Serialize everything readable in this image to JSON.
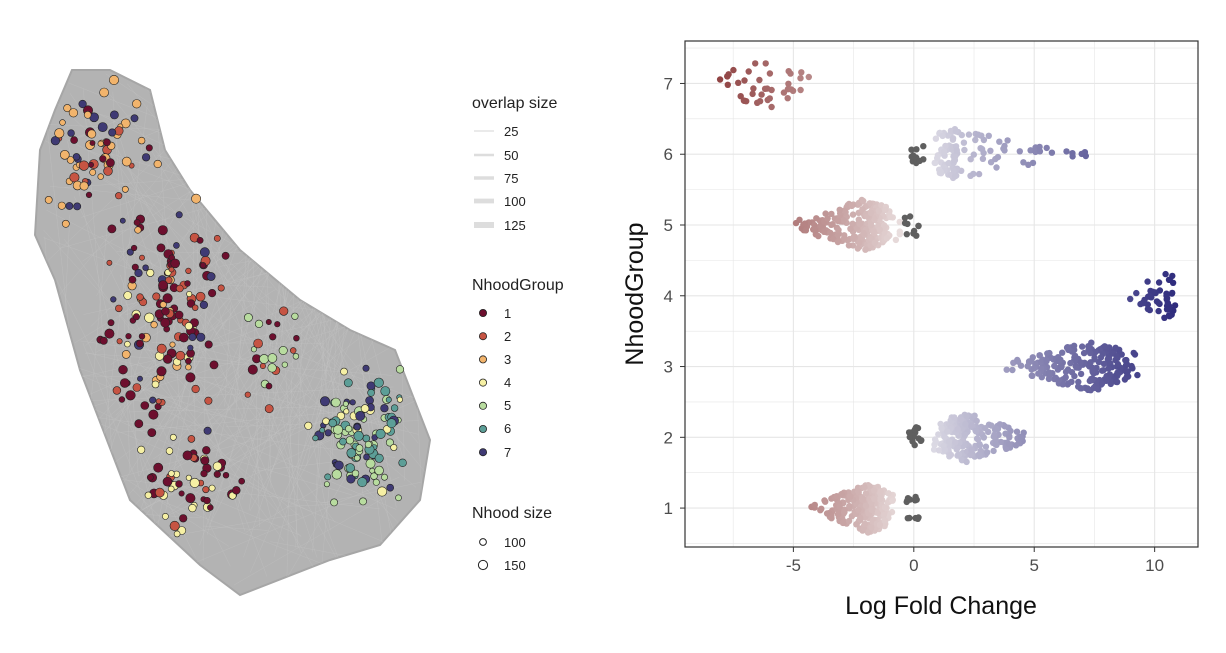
{
  "left_panel": {
    "legend_overlap": {
      "title": "overlap size",
      "entries": [
        "25",
        "50",
        "75",
        "100",
        "125"
      ]
    },
    "legend_group": {
      "title": "NhoodGroup",
      "entries": [
        {
          "label": "1",
          "color": "#6d0f2e"
        },
        {
          "label": "2",
          "color": "#c65443"
        },
        {
          "label": "3",
          "color": "#f2b46c"
        },
        {
          "label": "4",
          "color": "#f6f0a4"
        },
        {
          "label": "5",
          "color": "#b8dc9f"
        },
        {
          "label": "6",
          "color": "#5c9e97"
        },
        {
          "label": "7",
          "color": "#3f3a74"
        }
      ]
    },
    "legend_size": {
      "title": "Nhood size",
      "entries": [
        "100",
        "150"
      ]
    }
  },
  "chart_data": {
    "type": "scatter",
    "subtype": "beeswarm",
    "title": "",
    "xlabel": "Log Fold Change",
    "ylabel": "NhoodGroup",
    "xlim": [
      -9.5,
      11.8
    ],
    "ylim": [
      0.45,
      7.6
    ],
    "x_ticks": [
      -5,
      0,
      5,
      10
    ],
    "x_tick_labels": [
      "-5",
      "0",
      "5",
      "10"
    ],
    "y_ticks": [
      1,
      2,
      3,
      4,
      5,
      6,
      7
    ],
    "y_tick_labels": [
      "1",
      "2",
      "3",
      "4",
      "5",
      "6",
      "7"
    ],
    "color_scale": {
      "negative": "#8b3a3a",
      "zero": "#f5f3f3",
      "positive": "#2d2a7c",
      "not_significant": "#5f5f5f"
    },
    "groups": [
      {
        "group": 1,
        "lfc_min": -4.4,
        "lfc_max": -0.8,
        "lfc_peak": -1.9,
        "n_points": 240,
        "ns_range": [
          -0.3,
          0.3
        ],
        "n_ns": 12
      },
      {
        "group": 2,
        "lfc_min": 0.7,
        "lfc_max": 5.0,
        "lfc_peak": 2.2,
        "n_points": 210,
        "ns_range": [
          -0.2,
          0.4
        ],
        "n_ns": 14
      },
      {
        "group": 3,
        "lfc_min": 3.6,
        "lfc_max": 9.4,
        "lfc_peak": 7.3,
        "n_points": 220,
        "ns_range": null,
        "n_ns": 0
      },
      {
        "group": 4,
        "lfc_min": 8.7,
        "lfc_max": 11.0,
        "lfc_peak": 10.4,
        "n_points": 48,
        "ns_range": null,
        "n_ns": 0
      },
      {
        "group": 5,
        "lfc_min": -5.3,
        "lfc_max": -0.5,
        "lfc_peak": -2.1,
        "n_points": 240,
        "ns_range": [
          -0.4,
          0.2
        ],
        "n_ns": 10
      },
      {
        "group": 6,
        "lfc_min": 0.7,
        "lfc_max": 7.9,
        "lfc_peak": 1.8,
        "n_points": 110,
        "ns_range": [
          -0.1,
          0.4
        ],
        "n_ns": 11
      },
      {
        "group": 7,
        "lfc_min": -8.6,
        "lfc_max": -3.9,
        "lfc_peak": -6.0,
        "n_points": 40,
        "ns_range": null,
        "n_ns": 0
      }
    ]
  }
}
